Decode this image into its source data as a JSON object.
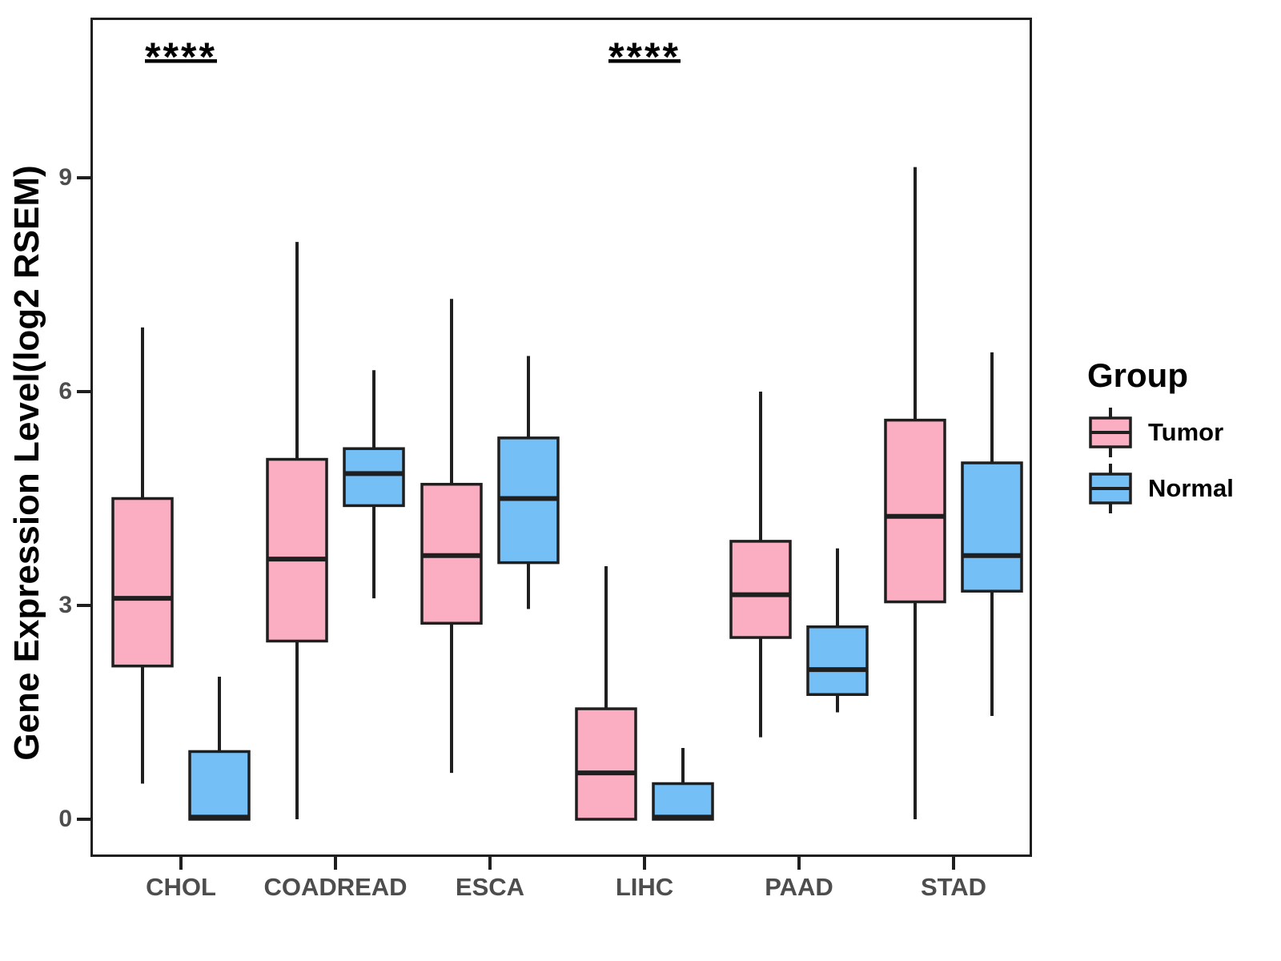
{
  "legend": {
    "title": "Group"
  },
  "colors": {
    "tumor_fill": "#FBAEC2",
    "normal_fill": "#74BFF5",
    "line": "#1F1F1F",
    "axis_text": "#4D4D4D",
    "title_text": "#000000"
  },
  "chart_data": {
    "type": "boxplot",
    "title": "",
    "ylabel": "Gene Expression Level(log2 RSEM)",
    "xlabel": "",
    "yticks": [
      0,
      3,
      6,
      9
    ],
    "ylim": [
      -0.53,
      11.25
    ],
    "grid": false,
    "legend_position": "right",
    "categories": [
      "CHOL",
      "COADREAD",
      "ESCA",
      "LIHC",
      "PAAD",
      "STAD"
    ],
    "series": [
      {
        "name": "Tumor",
        "fill": "#FBAEC2",
        "boxes": [
          {
            "category": "CHOL",
            "min": 0.5,
            "q1": 2.15,
            "median": 3.1,
            "q3": 4.5,
            "max": 6.9
          },
          {
            "category": "COADREAD",
            "min": 0,
            "q1": 2.5,
            "median": 3.65,
            "q3": 5.05,
            "max": 8.1
          },
          {
            "category": "ESCA",
            "min": 0.65,
            "q1": 2.75,
            "median": 3.7,
            "q3": 4.7,
            "max": 7.3
          },
          {
            "category": "LIHC",
            "min": 0,
            "q1": 0,
            "median": 0.65,
            "q3": 1.55,
            "max": 3.55
          },
          {
            "category": "PAAD",
            "min": 1.15,
            "q1": 2.55,
            "median": 3.15,
            "q3": 3.9,
            "max": 6.0
          },
          {
            "category": "STAD",
            "min": 0,
            "q1": 3.05,
            "median": 4.25,
            "q3": 5.6,
            "max": 9.15
          }
        ]
      },
      {
        "name": "Normal",
        "fill": "#74BFF5",
        "boxes": [
          {
            "category": "CHOL",
            "min": 0,
            "q1": 0,
            "median": 0.03,
            "q3": 0.95,
            "max": 2.0
          },
          {
            "category": "COADREAD",
            "min": 3.1,
            "q1": 4.4,
            "median": 4.85,
            "q3": 5.2,
            "max": 6.3
          },
          {
            "category": "ESCA",
            "min": 2.95,
            "q1": 3.6,
            "median": 4.5,
            "q3": 5.35,
            "max": 6.5
          },
          {
            "category": "LIHC",
            "min": 0,
            "q1": 0,
            "median": 0.03,
            "q3": 0.5,
            "max": 1.0
          },
          {
            "category": "PAAD",
            "min": 1.5,
            "q1": 1.75,
            "median": 2.1,
            "q3": 2.7,
            "max": 3.8
          },
          {
            "category": "STAD",
            "min": 1.45,
            "q1": 3.2,
            "median": 3.7,
            "q3": 5.0,
            "max": 6.55
          }
        ]
      }
    ],
    "significance": [
      {
        "category": "CHOL",
        "label": "****"
      },
      {
        "category": "LIHC",
        "label": "****"
      }
    ]
  }
}
